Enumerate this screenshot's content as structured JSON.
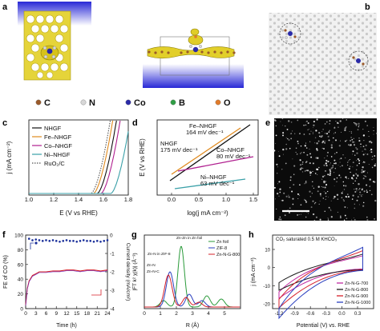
{
  "panel_labels": {
    "a": "a",
    "b": "b",
    "c": "c",
    "d": "d",
    "e": "e",
    "f": "f",
    "g": "g",
    "h": "h"
  },
  "element_legend": [
    {
      "symbol": "C",
      "color": "#9a5a2a"
    },
    {
      "symbol": "N",
      "color": "#d8d8d8"
    },
    {
      "symbol": "Co",
      "color": "#2a2aa8"
    },
    {
      "symbol": "B",
      "color": "#2f9e44"
    },
    {
      "symbol": "O",
      "color": "#e07a2a"
    }
  ],
  "colors": {
    "slab_gradient_top": "#2f2fd8",
    "isosurface": "#d4c21c",
    "black": "#111111",
    "orange": "#e08a1e",
    "magenta": "#b01f8f",
    "teal": "#3aa0a8",
    "red": "#d6202a",
    "blue": "#2a3fbf",
    "green": "#2a9a3a",
    "dotted": "#555555"
  },
  "scale_bar": "",
  "panel_c": {
    "xlabel": "E (V vs RHE)",
    "ylabel": "j (mA cm⁻²)",
    "xticks": [
      "1.0",
      "1.2",
      "1.4",
      "1.6",
      "1.8"
    ],
    "legend": [
      {
        "name": "NHGF",
        "color": "#111111",
        "dash": "solid"
      },
      {
        "name": "Fe–NHGF",
        "color": "#e08a1e",
        "dash": "solid"
      },
      {
        "name": "Co–NHGF",
        "color": "#b01f8f",
        "dash": "solid"
      },
      {
        "name": "Ni–NHGF",
        "color": "#3aa0a8",
        "dash": "solid"
      },
      {
        "name": "RuO₂/C",
        "color": "#555555",
        "dash": "dotted"
      }
    ]
  },
  "panel_d": {
    "xlabel": "log(j mA cm⁻²)",
    "ylabel": "E (V vs RHE)",
    "xticks": [
      "0.0",
      "0.5",
      "1.0",
      "1.5"
    ],
    "annotations": [
      {
        "text": "Fe–NHGF",
        "color": "#e08a1e"
      },
      {
        "text": "164 mV dec⁻¹",
        "color": "#e08a1e"
      },
      {
        "text": "NHGF",
        "color": "#111111"
      },
      {
        "text": "175 mV dec⁻¹",
        "color": "#111111"
      },
      {
        "text": "Co–NHGF",
        "color": "#b01f8f"
      },
      {
        "text": "80 mV dec⁻¹",
        "color": "#b01f8f"
      },
      {
        "text": "Ni–NHGF",
        "color": "#3aa0a8"
      },
      {
        "text": "63 mV dec⁻¹",
        "color": "#3aa0a8"
      }
    ]
  },
  "panel_f": {
    "xlabel": "Time (h)",
    "ylabel_left": "FE of CO (%)",
    "ylabel_right": "Current density (mA/cm²)",
    "xticks": [
      "0",
      "3",
      "6",
      "9",
      "12",
      "15",
      "18",
      "21",
      "24"
    ],
    "yticks_left": [
      "0",
      "20",
      "40",
      "60",
      "80",
      "100"
    ],
    "yticks_right": [
      "0",
      "-1",
      "-2",
      "-3",
      "-4"
    ]
  },
  "panel_g": {
    "xlabel": "R (Å)",
    "ylabel": "|FT k² χ(k)| (Å⁻³)",
    "xticks": [
      "0",
      "1",
      "2",
      "3",
      "4",
      "5"
    ],
    "legend": [
      {
        "name": "Zn foil",
        "color": "#2a9a3a"
      },
      {
        "name": "ZIF-8",
        "color": "#2a3fbf"
      },
      {
        "name": "Zn-N-G-800",
        "color": "#d6202a"
      }
    ],
    "annotations": [
      {
        "text": "Zn-N in ZIF-8",
        "color": "#2a3fbf"
      },
      {
        "text": "Zn-N",
        "color": "#d6202a"
      },
      {
        "text": "Zn-N-C",
        "color": "#d6202a"
      },
      {
        "text": "Zn-Zn in Zn foil",
        "color": "#2a9a3a"
      }
    ]
  },
  "panel_h": {
    "title": "CO₂ saturated 0.5 M KHCO₃",
    "xlabel": "Potential (V) vs. RHE",
    "ylabel": "j (mA cm⁻²)",
    "xticks": [
      "-1.2",
      "-0.9",
      "-0.6",
      "-0.3",
      "0.0",
      "0.3"
    ],
    "yticks": [
      "10",
      "0",
      "-10",
      "-20"
    ],
    "legend": [
      {
        "name": "Zn-N-G-700",
        "color": "#c02aa0"
      },
      {
        "name": "Zn-N-G-800",
        "color": "#1a1a1a"
      },
      {
        "name": "Zn-N-G-900",
        "color": "#d6202a"
      },
      {
        "name": "Zn-N-G-1000",
        "color": "#2a3fbf"
      }
    ]
  },
  "chart_data": [
    {
      "type": "line",
      "panel": "c",
      "xlabel": "E (V vs RHE)",
      "ylabel": "j (mA cm⁻²)",
      "xlim": [
        1.0,
        1.8
      ],
      "series": [
        {
          "name": "RuO₂/C",
          "onset": 1.5
        },
        {
          "name": "Fe–NHGF",
          "onset": 1.52
        },
        {
          "name": "NHGF",
          "onset": 1.55
        },
        {
          "name": "Co–NHGF",
          "onset": 1.58
        },
        {
          "name": "Ni–NHGF",
          "onset": 1.66
        }
      ]
    },
    {
      "type": "line",
      "panel": "d",
      "xlabel": "log(j mA cm⁻²)",
      "ylabel": "E (V vs RHE)",
      "xlim": [
        -0.3,
        1.7
      ],
      "series": [
        {
          "name": "NHGF",
          "tafel_slope_mV_dec": 175
        },
        {
          "name": "Fe–NHGF",
          "tafel_slope_mV_dec": 164
        },
        {
          "name": "Co–NHGF",
          "tafel_slope_mV_dec": 80
        },
        {
          "name": "Ni–NHGF",
          "tafel_slope_mV_dec": 63
        }
      ]
    },
    {
      "type": "scatter",
      "panel": "f",
      "xlabel": "Time (h)",
      "ylabel": "FE of CO (%)",
      "xlim": [
        0,
        24
      ],
      "ylim": [
        0,
        100
      ],
      "series": [
        {
          "name": "FE",
          "x": [
            1,
            2,
            3,
            4,
            5,
            6,
            7,
            8,
            9,
            10,
            11,
            12,
            13,
            14,
            15,
            16,
            17,
            18,
            19,
            20,
            21,
            22,
            23,
            24
          ],
          "values": [
            95,
            93,
            94,
            93,
            92,
            93,
            92,
            93,
            92,
            91,
            92,
            93,
            92,
            92,
            91,
            92,
            93,
            92,
            92,
            91,
            92,
            91,
            92,
            93
          ]
        },
        {
          "name": "Current density",
          "x": [
            0,
            0.5,
            1,
            2,
            3,
            4,
            6,
            8,
            10,
            12,
            14,
            16,
            18,
            20,
            22,
            24
          ],
          "values": [
            -3.8,
            -2.9,
            -2.5,
            -2.2,
            -2.1,
            -2.0,
            -2.0,
            -1.95,
            -1.95,
            -1.9,
            -1.9,
            -1.95,
            -1.9,
            -1.9,
            -1.95,
            -1.9
          ]
        }
      ]
    },
    {
      "type": "line",
      "panel": "g",
      "xlabel": "R (Å)",
      "ylabel": "|FT k² χ(k)| (Å⁻³)",
      "xlim": [
        0,
        6
      ],
      "series": [
        {
          "name": "Zn foil",
          "peak_R": 2.3
        },
        {
          "name": "ZIF-8",
          "peak_R": 1.6
        },
        {
          "name": "Zn-N-G-800",
          "peak_R": 1.5
        }
      ]
    },
    {
      "type": "line",
      "panel": "h",
      "xlabel": "Potential (V) vs. RHE",
      "ylabel": "j (mA cm⁻²)",
      "xlim": [
        -1.3,
        0.5
      ],
      "series": [
        {
          "name": "Zn-N-G-700"
        },
        {
          "name": "Zn-N-G-800"
        },
        {
          "name": "Zn-N-G-900"
        },
        {
          "name": "Zn-N-G-1000"
        }
      ]
    }
  ]
}
